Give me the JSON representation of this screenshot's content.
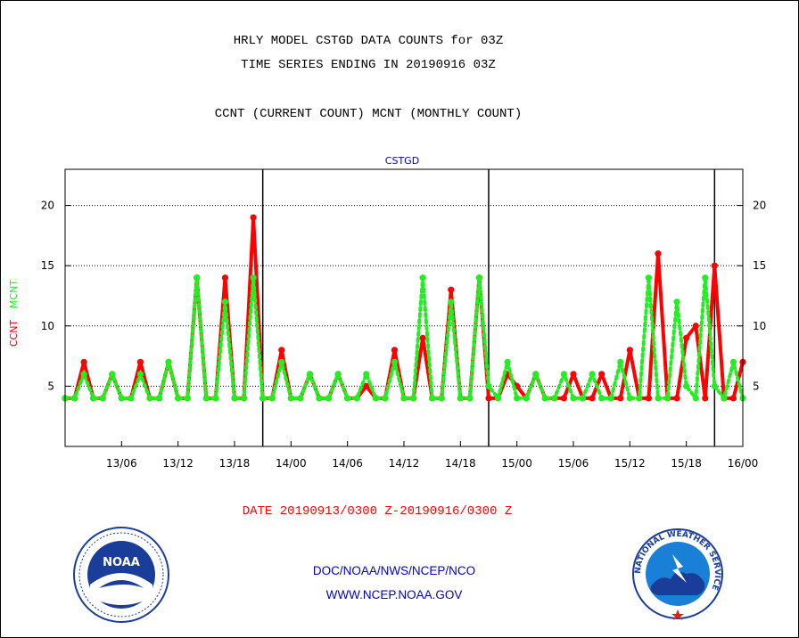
{
  "header": {
    "title_line1": "HRLY MODEL CSTGD DATA COUNTS for 03Z",
    "title_line2": "TIME SERIES ENDING IN 20190916 03Z",
    "subtitle": "CCNT (CURRENT COUNT) MCNT (MONTHLY COUNT)"
  },
  "footer": {
    "date_range": "DATE 20190913/0300 Z-20190916/0300 Z",
    "org_line": "DOC/NOAA/NWS/NCEP/NCO",
    "url_line": "WWW.NCEP.NOAA.GOV"
  },
  "logos": {
    "left_text": "NOAA",
    "right_ring_text": "NATIONAL WEATHER SERVICE"
  },
  "colors": {
    "ccnt": "#ff0000",
    "mcnt": "#22ee22",
    "label_blue": "#0000cc"
  },
  "chart_data": {
    "type": "line",
    "title": "CSTGD",
    "ylabel_parts": [
      {
        "text": "CCNT",
        "color": "#ff0000"
      },
      {
        "text": "MCNT",
        "color": "#22ee22"
      }
    ],
    "ylim": [
      0,
      23
    ],
    "yticks": [
      5,
      10,
      15,
      20
    ],
    "grid": "horizontal-dotted",
    "x_hour_start": 3,
    "x_hour_end": 75,
    "day_separators_hour": [
      24,
      48,
      72
    ],
    "xtick_hours": [
      9,
      15,
      21,
      27,
      33,
      39,
      45,
      51,
      57,
      63,
      69,
      75
    ],
    "xticks": [
      "13/06",
      "13/12",
      "13/18",
      "14/00",
      "14/06",
      "14/12",
      "14/18",
      "15/00",
      "15/06",
      "15/12",
      "15/18",
      "16/00"
    ],
    "series": [
      {
        "name": "CCNT",
        "color": "#ff0000",
        "style": "solid",
        "values": [
          4,
          4,
          7,
          4,
          4,
          6,
          4,
          4,
          7,
          4,
          4,
          7,
          4,
          4,
          14,
          4,
          4,
          14,
          4,
          4,
          19,
          4,
          4,
          8,
          4,
          4,
          6,
          4,
          4,
          6,
          4,
          4,
          5,
          4,
          4,
          8,
          4,
          4,
          9,
          4,
          4,
          13,
          4,
          4,
          14,
          4,
          4,
          6,
          5,
          4,
          6,
          4,
          4,
          4,
          6,
          4,
          4,
          6,
          4,
          4,
          8,
          4,
          4,
          16,
          4,
          4,
          9,
          10,
          4,
          15,
          4,
          4,
          7
        ]
      },
      {
        "name": "MCNT",
        "color": "#22ee22",
        "style": "dotted",
        "values": [
          4,
          4,
          6,
          4,
          4,
          6,
          4,
          4,
          6,
          4,
          4,
          7,
          4,
          4,
          14,
          4,
          4,
          12,
          4,
          4,
          14,
          4,
          4,
          7,
          4,
          4,
          6,
          4,
          4,
          6,
          4,
          4,
          6,
          4,
          4,
          7,
          4,
          4,
          14,
          4,
          4,
          12,
          4,
          4,
          14,
          5,
          4,
          7,
          4,
          4,
          6,
          4,
          4,
          6,
          4,
          4,
          6,
          4,
          4,
          7,
          4,
          4,
          14,
          4,
          4,
          12,
          5,
          4,
          14,
          5,
          4,
          7,
          4
        ]
      }
    ]
  }
}
